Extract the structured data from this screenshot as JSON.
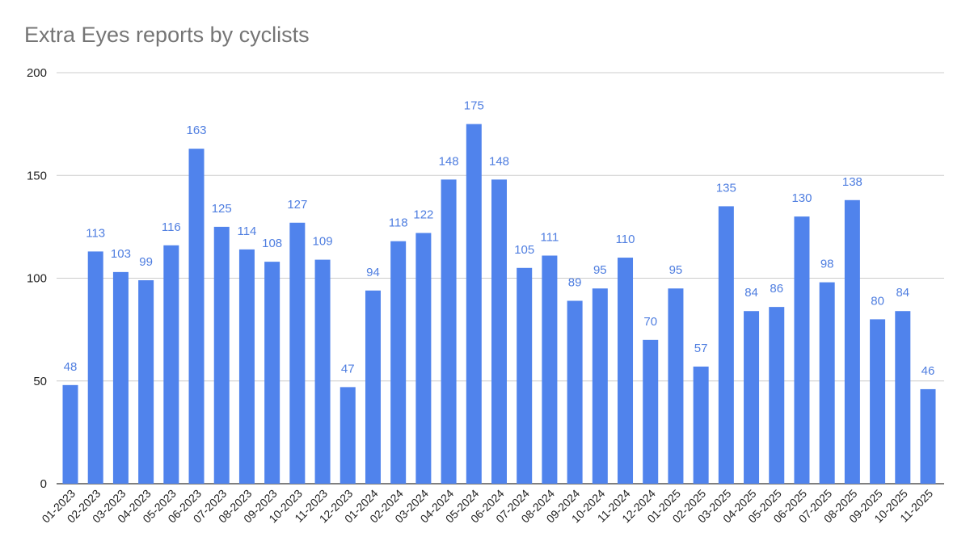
{
  "chart_data": {
    "type": "bar",
    "title": "Extra Eyes reports by cyclists",
    "xlabel": "",
    "ylabel": "",
    "ylim": [
      0,
      200
    ],
    "yticks": [
      "0",
      "50",
      "100",
      "150",
      "200"
    ],
    "grid": true,
    "bar_color": "#5083ec",
    "label_color": "#4f7ee0",
    "categories": [
      "01-2023",
      "02-2023",
      "03-2023",
      "04-2023",
      "05-2023",
      "06-2023",
      "07-2023",
      "08-2023",
      "09-2023",
      "10-2023",
      "11-2023",
      "12-2023",
      "01-2024",
      "02-2024",
      "03-2024",
      "04-2024",
      "05-2024",
      "06-2024",
      "07-2024",
      "08-2024",
      "09-2024",
      "10-2024",
      "11-2024",
      "12-2024",
      "01-2025",
      "02-2025",
      "03-2025",
      "04-2025",
      "05-2025",
      "06-2025",
      "07-2025",
      "08-2025",
      "09-2025",
      "10-2025",
      "11-2025"
    ],
    "values": [
      48,
      113,
      103,
      99,
      116,
      163,
      125,
      114,
      108,
      127,
      109,
      47,
      94,
      118,
      122,
      148,
      175,
      148,
      105,
      111,
      89,
      95,
      110,
      70,
      95,
      57,
      135,
      84,
      86,
      130,
      98,
      138,
      80,
      84,
      46
    ]
  }
}
